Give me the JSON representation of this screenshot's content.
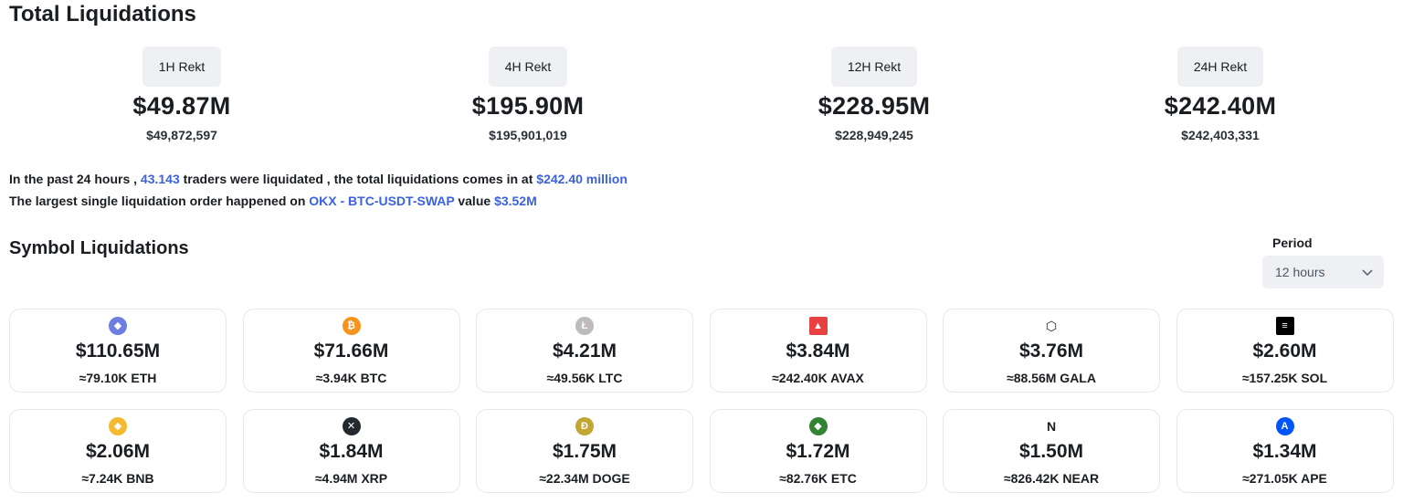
{
  "total": {
    "title": "Total Liquidations",
    "stats": [
      {
        "label": "1H Rekt",
        "value": "$49.87M",
        "exact": "$49,872,597"
      },
      {
        "label": "4H Rekt",
        "value": "$195.90M",
        "exact": "$195,901,019"
      },
      {
        "label": "12H Rekt",
        "value": "$228.95M",
        "exact": "$228,949,245"
      },
      {
        "label": "24H Rekt",
        "value": "$242.40M",
        "exact": "$242,403,331"
      }
    ]
  },
  "summary": {
    "line1_a": "In the past 24 hours , ",
    "traders": "43.143",
    "line1_b": " traders were liquidated , the total liquidations comes in at ",
    "total": "$242.40 million",
    "line2_a": "The largest single liquidation order happened on ",
    "order": "OKX - BTC-USDT-SWAP",
    "line2_b": " value ",
    "order_value": "$3.52M"
  },
  "symbols": {
    "title": "Symbol Liquidations",
    "period_label": "Period",
    "period_value": "12 hours",
    "cards": [
      {
        "value": "$110.65M",
        "amount": "≈79.10K ETH",
        "icon": "eth-icon",
        "color": "#6c7ee1"
      },
      {
        "value": "$71.66M",
        "amount": "≈3.94K BTC",
        "icon": "btc-icon",
        "color": "#f7931a"
      },
      {
        "value": "$4.21M",
        "amount": "≈49.56K LTC",
        "icon": "ltc-icon",
        "color": "#bfbbbb"
      },
      {
        "value": "$3.84M",
        "amount": "≈242.40K AVAX",
        "icon": "avax-icon",
        "color": "#e84142"
      },
      {
        "value": "$3.76M",
        "amount": "≈88.56M GALA",
        "icon": "gala-icon",
        "color": "#1a1d21"
      },
      {
        "value": "$2.60M",
        "amount": "≈157.25K SOL",
        "icon": "sol-icon",
        "color": "#000000"
      },
      {
        "value": "$2.06M",
        "amount": "≈7.24K BNB",
        "icon": "bnb-icon",
        "color": "#f3ba2f"
      },
      {
        "value": "$1.84M",
        "amount": "≈4.94M XRP",
        "icon": "xrp-icon",
        "color": "#23292f"
      },
      {
        "value": "$1.75M",
        "amount": "≈22.34M DOGE",
        "icon": "doge-icon",
        "color": "#c2a633"
      },
      {
        "value": "$1.72M",
        "amount": "≈82.76K ETC",
        "icon": "etc-icon",
        "color": "#328332"
      },
      {
        "value": "$1.50M",
        "amount": "≈826.42K NEAR",
        "icon": "near-icon",
        "color": "#1a1d21"
      },
      {
        "value": "$1.34M",
        "amount": "≈271.05K APE",
        "icon": "ape-icon",
        "color": "#0054f9"
      }
    ]
  }
}
